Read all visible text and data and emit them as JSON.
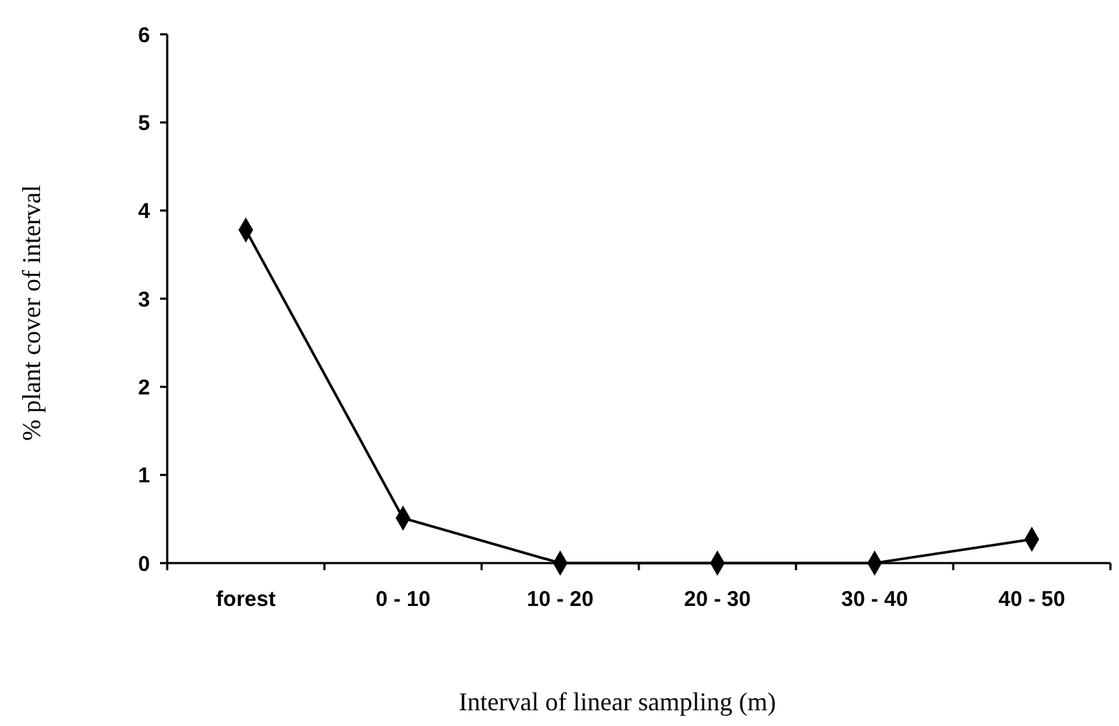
{
  "chart_data": {
    "type": "line",
    "xlabel": "Interval of linear sampling (m)",
    "ylabel": "% plant cover of interval",
    "categories": [
      "forest",
      "0 - 10",
      "10 - 20",
      "20 - 30",
      "30 - 40",
      "40 - 50"
    ],
    "series": [
      {
        "color": "#000000",
        "values": [
          3.78,
          0.51,
          0,
          0,
          0,
          0.27
        ]
      }
    ],
    "ylim": [
      0,
      6
    ],
    "yticks": [
      0,
      1,
      2,
      3,
      4,
      5,
      6
    ],
    "marker": "diamond",
    "line_style": "solid"
  }
}
